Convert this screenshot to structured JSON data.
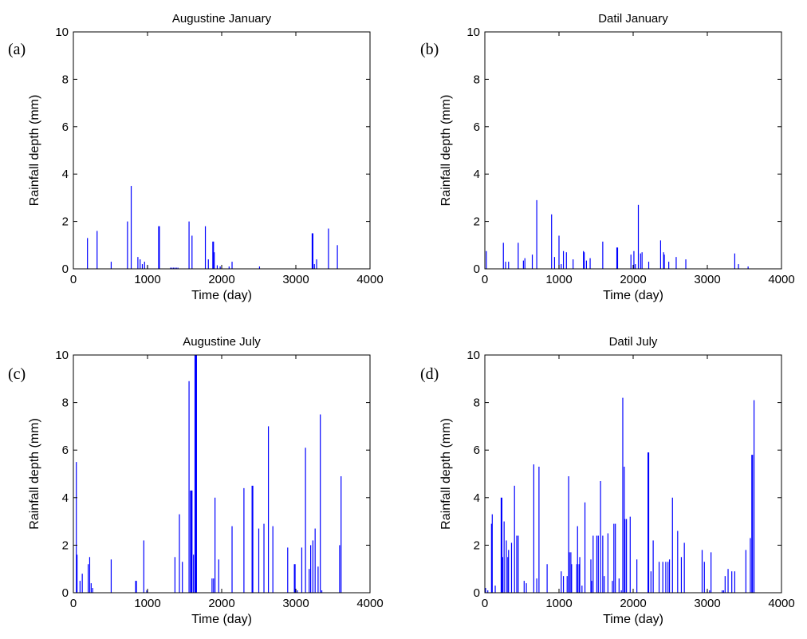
{
  "chart_data": [
    {
      "type": "bar",
      "panel_label": "(a)",
      "title": "Augustine January",
      "xlabel": "Time (day)",
      "ylabel": "Rainfall depth (mm)",
      "xlim": [
        0,
        4000
      ],
      "ylim": [
        0,
        10
      ],
      "xticks": [
        "0",
        "1000",
        "2000",
        "3000",
        "4000"
      ],
      "yticks": [
        "0",
        "2",
        "4",
        "6",
        "8",
        "10"
      ],
      "color": "#0000ff",
      "x": [
        190,
        320,
        510,
        730,
        780,
        870,
        900,
        930,
        960,
        1000,
        1150,
        1160,
        1310,
        1330,
        1350,
        1370,
        1390,
        1410,
        1560,
        1600,
        1780,
        1820,
        1880,
        1890,
        1900,
        1940,
        1980,
        2100,
        2140,
        2510,
        3220,
        3230,
        3250,
        3280,
        3440,
        3560
      ],
      "values": [
        1.3,
        1.6,
        0.3,
        2.0,
        3.5,
        0.5,
        0.4,
        0.2,
        0.3,
        0.15,
        1.8,
        1.8,
        0.05,
        0.05,
        0.05,
        0.05,
        0.05,
        0.05,
        2.0,
        1.4,
        1.8,
        0.4,
        1.15,
        1.15,
        0.7,
        0.15,
        0.1,
        0.1,
        0.3,
        0.1,
        1.5,
        1.5,
        0.2,
        0.4,
        1.7,
        1.0
      ]
    },
    {
      "type": "bar",
      "panel_label": "(b)",
      "title": "Datil January",
      "xlabel": "Time (day)",
      "ylabel": "Rainfall depth (mm)",
      "xlim": [
        0,
        4000
      ],
      "ylim": [
        0,
        10
      ],
      "xticks": [
        "0",
        "1000",
        "2000",
        "3000",
        "4000"
      ],
      "yticks": [
        "0",
        "2",
        "4",
        "6",
        "8",
        "10"
      ],
      "color": "#0000ff",
      "x": [
        20,
        250,
        280,
        320,
        450,
        520,
        540,
        640,
        700,
        900,
        940,
        1000,
        1030,
        1060,
        1100,
        1190,
        1330,
        1340,
        1370,
        1420,
        1590,
        1780,
        1790,
        1970,
        2010,
        2030,
        2070,
        2100,
        2120,
        2210,
        2370,
        2410,
        2420,
        2480,
        2580,
        2710,
        3370,
        3420,
        3550
      ],
      "values": [
        0.75,
        1.1,
        0.3,
        0.3,
        1.1,
        0.35,
        0.45,
        0.6,
        2.9,
        2.3,
        0.5,
        1.4,
        0.2,
        0.75,
        0.7,
        0.4,
        0.75,
        0.7,
        0.35,
        0.45,
        1.15,
        0.9,
        0.9,
        0.6,
        0.75,
        0.2,
        2.7,
        0.65,
        0.7,
        0.3,
        1.2,
        0.7,
        0.6,
        0.3,
        0.5,
        0.4,
        0.65,
        0.2,
        0.1
      ]
    },
    {
      "type": "bar",
      "panel_label": "(c)",
      "title": "Augustine July",
      "xlabel": "Time (day)",
      "ylabel": "Rainfall depth (mm)",
      "xlim": [
        0,
        4000
      ],
      "ylim": [
        0,
        10
      ],
      "xticks": [
        "0",
        "1000",
        "2000",
        "3000",
        "4000"
      ],
      "yticks": [
        "0",
        "2",
        "4",
        "6",
        "8",
        "10"
      ],
      "color": "#0000ff",
      "x": [
        40,
        50,
        90,
        120,
        200,
        220,
        240,
        260,
        510,
        840,
        850,
        950,
        990,
        1370,
        1430,
        1470,
        1560,
        1580,
        1590,
        1600,
        1620,
        1640,
        1650,
        1660,
        1870,
        1890,
        1910,
        1960,
        2140,
        2300,
        2410,
        2420,
        2500,
        2570,
        2630,
        2690,
        2890,
        2980,
        2990,
        3020,
        3080,
        3130,
        3180,
        3200,
        3230,
        3260,
        3300,
        3330,
        3350,
        3590,
        3610
      ],
      "values": [
        5.5,
        1.6,
        0.5,
        0.8,
        1.2,
        1.5,
        0.4,
        0.2,
        1.4,
        0.5,
        0.5,
        2.2,
        0.1,
        1.5,
        3.3,
        1.3,
        8.9,
        4.3,
        4.3,
        4.3,
        1.6,
        10.0,
        10.0,
        10.0,
        0.6,
        0.6,
        4.0,
        1.4,
        2.8,
        4.4,
        4.5,
        4.5,
        2.7,
        2.9,
        7.0,
        2.8,
        1.9,
        1.2,
        1.2,
        0.1,
        1.9,
        6.1,
        1.0,
        2.0,
        2.2,
        2.7,
        1.1,
        7.5,
        0.1,
        2.0,
        4.9
      ]
    },
    {
      "type": "bar",
      "panel_label": "(d)",
      "title": "Datil July",
      "xlabel": "Time (day)",
      "ylabel": "Rainfall depth (mm)",
      "xlim": [
        0,
        4000
      ],
      "ylim": [
        0,
        10
      ],
      "xticks": [
        "0",
        "1000",
        "2000",
        "3000",
        "4000"
      ],
      "yticks": [
        "0",
        "2",
        "4",
        "6",
        "8",
        "10"
      ],
      "color": "#0000ff",
      "x": [
        10,
        40,
        90,
        100,
        140,
        220,
        230,
        240,
        260,
        290,
        310,
        320,
        360,
        400,
        430,
        450,
        530,
        560,
        660,
        700,
        730,
        840,
        1030,
        1060,
        1110,
        1130,
        1140,
        1160,
        1170,
        1240,
        1250,
        1270,
        1280,
        1310,
        1350,
        1430,
        1440,
        1460,
        1510,
        1530,
        1560,
        1590,
        1610,
        1660,
        1720,
        1740,
        1760,
        1810,
        1840,
        1860,
        1880,
        1890,
        1910,
        1960,
        2050,
        2200,
        2210,
        2240,
        2270,
        2350,
        2400,
        2440,
        2470,
        2490,
        2530,
        2600,
        2650,
        2690,
        2930,
        2960,
        3000,
        3030,
        3050,
        3200,
        3220,
        3240,
        3280,
        3330,
        3370,
        3520,
        3580,
        3600,
        3610,
        3630
      ],
      "values": [
        0.2,
        0.1,
        2.9,
        3.3,
        0.3,
        4.0,
        4.0,
        1.5,
        3.0,
        2.2,
        1.5,
        1.8,
        2.1,
        4.5,
        2.4,
        2.4,
        0.5,
        0.4,
        5.4,
        0.6,
        5.3,
        1.2,
        0.9,
        0.7,
        0.7,
        4.9,
        1.7,
        1.7,
        1.2,
        1.2,
        2.8,
        1.2,
        1.5,
        0.3,
        3.8,
        1.4,
        0.5,
        2.4,
        2.4,
        2.4,
        4.7,
        2.4,
        0.7,
        2.5,
        0.5,
        2.9,
        2.9,
        0.6,
        0.1,
        8.2,
        5.3,
        3.1,
        3.1,
        3.2,
        1.4,
        5.9,
        5.9,
        0.9,
        2.2,
        1.3,
        1.3,
        1.3,
        1.3,
        1.4,
        4.0,
        2.6,
        1.5,
        2.1,
        1.8,
        1.3,
        0.1,
        0.1,
        1.7,
        0.1,
        0.1,
        0.7,
        1.0,
        0.9,
        0.9,
        1.8,
        2.3,
        5.8,
        5.8,
        8.1
      ]
    }
  ]
}
